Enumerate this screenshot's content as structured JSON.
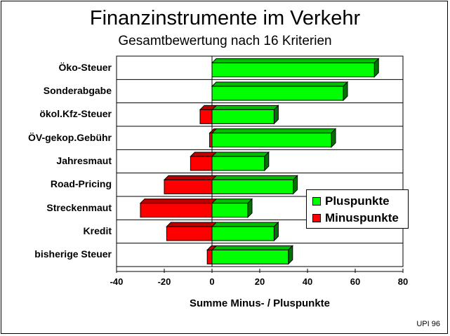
{
  "chart_data": {
    "type": "bar",
    "orientation": "horizontal",
    "title": "Finanzinstrumente im Verkehr",
    "subtitle": "Gesamtbewertung nach 16 Kriterien",
    "xlabel": "Summe Minus- / Pluspunkte",
    "ylabel": "",
    "xlim": [
      -40,
      80
    ],
    "xticks": [
      "-40",
      "-20",
      "0",
      "20",
      "40",
      "60",
      "80"
    ],
    "categories": [
      "Öko-Steuer",
      "Sonderabgabe",
      "ökol.Kfz-Steuer",
      "ÖV-gekop.Gebühr",
      "Jahresmaut",
      "Road-Pricing",
      "Streckenmaut",
      "Kredit",
      "bisherige Steuer"
    ],
    "series": [
      {
        "name": "Pluspunkte",
        "color": "#00ff00",
        "values": [
          68,
          55,
          26,
          50,
          22,
          34,
          15,
          26,
          32
        ]
      },
      {
        "name": "Minuspunkte",
        "color": "#ff0000",
        "values": [
          0,
          0,
          -5,
          -1,
          -9,
          -20,
          -30,
          -19,
          -2
        ]
      }
    ],
    "legend_position": "right",
    "grid": "horizontal separators"
  },
  "source_note": "UPI 96"
}
